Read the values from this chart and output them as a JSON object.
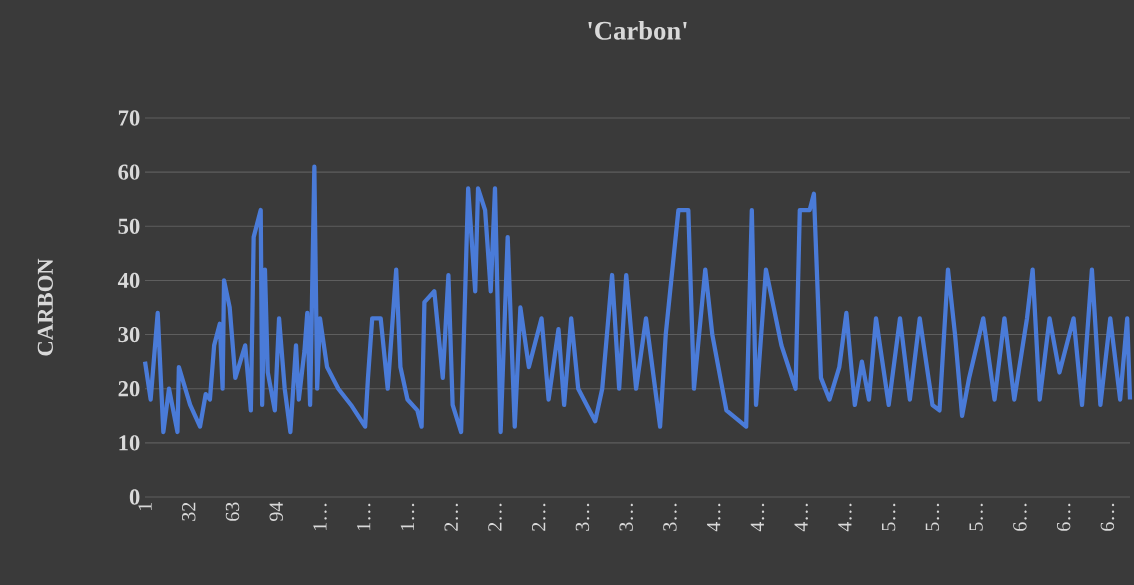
{
  "chart_data": {
    "type": "line",
    "title": "'Carbon'",
    "ylabel": "CARBON",
    "ylim": [
      0,
      70
    ],
    "yticks": [
      0,
      10,
      20,
      30,
      40,
      50,
      60,
      70
    ],
    "xlim": [
      1,
      699
    ],
    "xticks": [
      1,
      32,
      63,
      94,
      {
        "value": 125,
        "label": "1…"
      },
      {
        "value": 156,
        "label": "1…"
      },
      {
        "value": 187,
        "label": "1…"
      },
      {
        "value": 218,
        "label": "2…"
      },
      {
        "value": 249,
        "label": "2…"
      },
      {
        "value": 280,
        "label": "2…"
      },
      {
        "value": 311,
        "label": "3…"
      },
      {
        "value": 342,
        "label": "3…"
      },
      {
        "value": 373,
        "label": "3…"
      },
      {
        "value": 404,
        "label": "4…"
      },
      {
        "value": 435,
        "label": "4…"
      },
      {
        "value": 466,
        "label": "4…"
      },
      {
        "value": 497,
        "label": "4…"
      },
      {
        "value": 528,
        "label": "5…"
      },
      {
        "value": 559,
        "label": "5…"
      },
      {
        "value": 590,
        "label": "5…"
      },
      {
        "value": 621,
        "label": "6…"
      },
      {
        "value": 652,
        "label": "6…"
      },
      {
        "value": 683,
        "label": "6…"
      }
    ],
    "grid": "y",
    "legend": false,
    "marker": "none",
    "line_style": "solid",
    "series": [
      {
        "color": "#4a7bd8",
        "x": [
          1,
          5,
          10,
          14,
          18,
          24,
          25,
          33,
          40,
          44,
          47,
          50,
          54,
          56,
          57,
          61,
          65,
          72,
          76,
          78,
          83,
          84,
          86,
          88,
          93,
          96,
          100,
          104,
          108,
          110,
          114,
          116,
          118,
          121,
          123,
          125,
          130,
          138,
          147,
          157,
          159,
          162,
          168,
          173,
          179,
          182,
          187,
          194,
          197,
          199,
          206,
          212,
          216,
          219,
          225,
          230,
          235,
          237,
          242,
          246,
          249,
          253,
          258,
          263,
          267,
          273,
          282,
          287,
          294,
          298,
          303,
          308,
          320,
          325,
          332,
          337,
          342,
          349,
          356,
          366,
          370,
          379,
          386,
          390,
          398,
          403,
          413,
          427,
          431,
          434,
          441,
          452,
          462,
          465,
          472,
          475,
          480,
          486,
          493,
          498,
          504,
          509,
          514,
          519,
          528,
          536,
          543,
          550,
          559,
          564,
          570,
          575,
          580,
          585,
          595,
          603,
          610,
          617,
          626,
          630,
          635,
          642,
          649,
          659,
          665,
          672,
          678,
          685,
          692,
          697,
          699
        ],
        "values": [
          25,
          18,
          34,
          12,
          20,
          12,
          24,
          17,
          13,
          19,
          18,
          28,
          32,
          20,
          40,
          35,
          22,
          28,
          16,
          48,
          53,
          17,
          42,
          23,
          16,
          33,
          20,
          12,
          28,
          18,
          27,
          34,
          17,
          61,
          20,
          33,
          24,
          20,
          17,
          13,
          22,
          33,
          33,
          20,
          42,
          24,
          18,
          16,
          13,
          36,
          38,
          22,
          41,
          17,
          12,
          57,
          38,
          57,
          53,
          38,
          57,
          12,
          48,
          13,
          35,
          24,
          33,
          18,
          31,
          17,
          33,
          20,
          14,
          20,
          41,
          20,
          41,
          20,
          33,
          13,
          30,
          53,
          53,
          20,
          42,
          30,
          16,
          13,
          53,
          17,
          42,
          28,
          20,
          53,
          53,
          56,
          22,
          18,
          24,
          34,
          17,
          25,
          18,
          33,
          17,
          33,
          18,
          33,
          17,
          16,
          42,
          30,
          15,
          22,
          33,
          18,
          33,
          18,
          33,
          42,
          18,
          33,
          23,
          33,
          17,
          42,
          17,
          33,
          18,
          33,
          18
        ]
      }
    ]
  }
}
